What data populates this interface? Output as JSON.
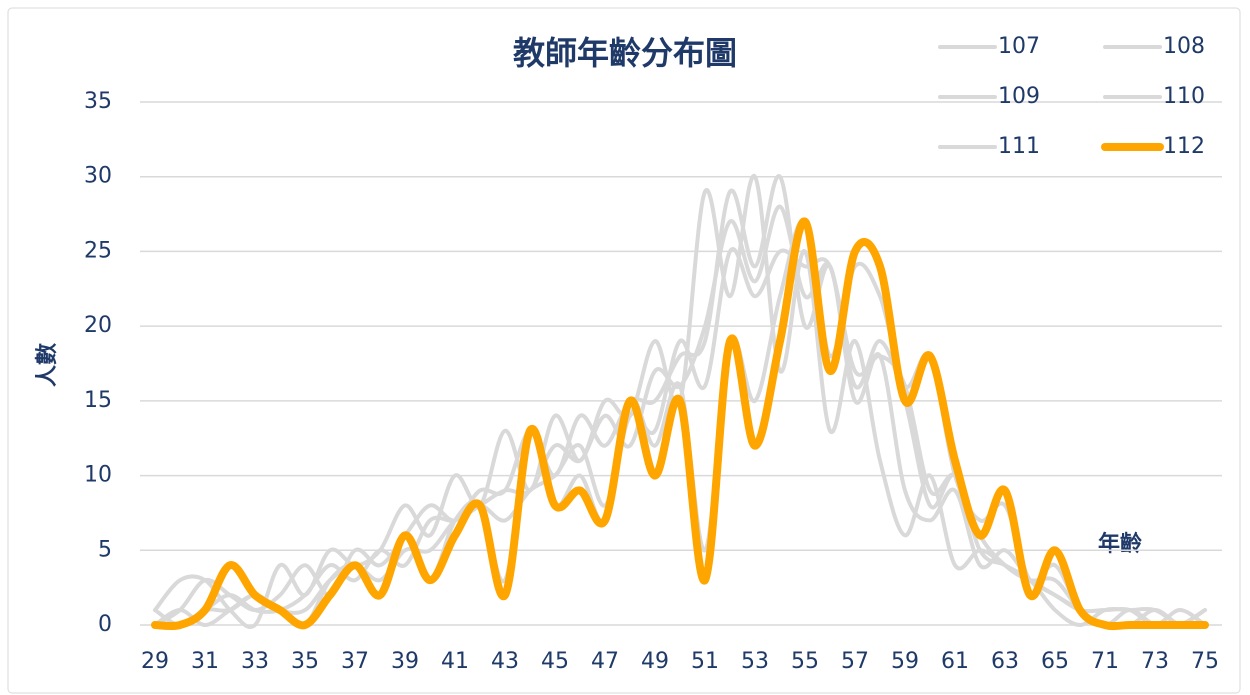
{
  "chart_data": {
    "type": "line",
    "title": "教師年齡分布圖",
    "y_label": "人數",
    "x_label": "年齡",
    "categories": [
      29,
      null,
      31,
      null,
      33,
      null,
      35,
      null,
      37,
      null,
      39,
      null,
      41,
      null,
      43,
      null,
      45,
      null,
      47,
      null,
      49,
      null,
      51,
      null,
      53,
      null,
      55,
      null,
      57,
      null,
      59,
      null,
      61,
      null,
      63,
      null,
      65,
      null,
      71,
      null,
      73,
      null,
      75
    ],
    "series": [
      {
        "name": "107",
        "color": "#d9d9d9",
        "values": [
          1,
          3,
          3,
          1,
          0,
          4,
          2,
          5,
          4,
          5,
          8,
          6,
          10,
          8,
          13,
          9,
          14,
          11,
          15,
          14,
          19,
          15,
          29,
          22,
          30,
          17,
          25,
          13,
          19,
          11,
          6,
          10,
          4,
          5,
          4,
          3,
          1,
          0,
          1,
          1,
          1,
          0,
          0
        ]
      },
      {
        "name": "108",
        "color": "#d9d9d9",
        "values": [
          0,
          1,
          3,
          2,
          1,
          2,
          4,
          2,
          5,
          4,
          6,
          8,
          7,
          9,
          9,
          13,
          10,
          14,
          12,
          15,
          15,
          18,
          19,
          29,
          24,
          30,
          20,
          24,
          15,
          18,
          9,
          7,
          9,
          4,
          5,
          3,
          2,
          1,
          1,
          1,
          0,
          1,
          0
        ]
      },
      {
        "name": "109",
        "color": "#d9d9d9",
        "values": [
          0,
          0,
          1,
          2,
          1,
          1,
          2,
          4,
          3,
          5,
          4,
          7,
          7,
          8,
          9,
          9,
          12,
          11,
          14,
          12,
          17,
          16,
          20,
          27,
          23,
          28,
          22,
          24,
          16,
          19,
          15,
          8,
          10,
          5,
          4,
          3,
          2,
          1,
          0,
          1,
          0,
          0,
          1
        ]
      },
      {
        "name": "110",
        "color": "#d9d9d9",
        "values": [
          0,
          1,
          0,
          1,
          2,
          1,
          1,
          3,
          4,
          3,
          5,
          5,
          7,
          8,
          7,
          9,
          10,
          12,
          8,
          14,
          13,
          19,
          16,
          25,
          22,
          25,
          24,
          24,
          17,
          18,
          16,
          9,
          10,
          6,
          4,
          3,
          3,
          1,
          0,
          0,
          1,
          0,
          0
        ]
      },
      {
        "name": "111",
        "color": "#d9d9d9",
        "values": [
          1,
          0,
          1,
          1,
          2,
          1,
          0,
          3,
          4,
          2,
          6,
          3,
          7,
          8,
          3,
          13,
          8,
          10,
          7,
          15,
          12,
          16,
          5,
          19,
          15,
          22,
          27,
          18,
          24,
          22,
          16,
          18,
          10,
          7,
          8,
          3,
          4,
          1,
          0,
          0,
          0,
          0,
          1
        ]
      },
      {
        "name": "112",
        "color": "#ffa500",
        "values": [
          0,
          0,
          1,
          4,
          2,
          1,
          0,
          2,
          4,
          2,
          6,
          3,
          6,
          8,
          2,
          13,
          8,
          9,
          7,
          15,
          10,
          15,
          3,
          19,
          12,
          19,
          27,
          17,
          25,
          24,
          15,
          18,
          11,
          6,
          9,
          2,
          5,
          1,
          0,
          0,
          0,
          0,
          0
        ]
      }
    ],
    "ylim": [
      0,
      35
    ],
    "yticks": [
      0,
      5,
      10,
      15,
      20,
      25,
      30,
      35
    ],
    "grid": true,
    "legend": "top-right"
  }
}
